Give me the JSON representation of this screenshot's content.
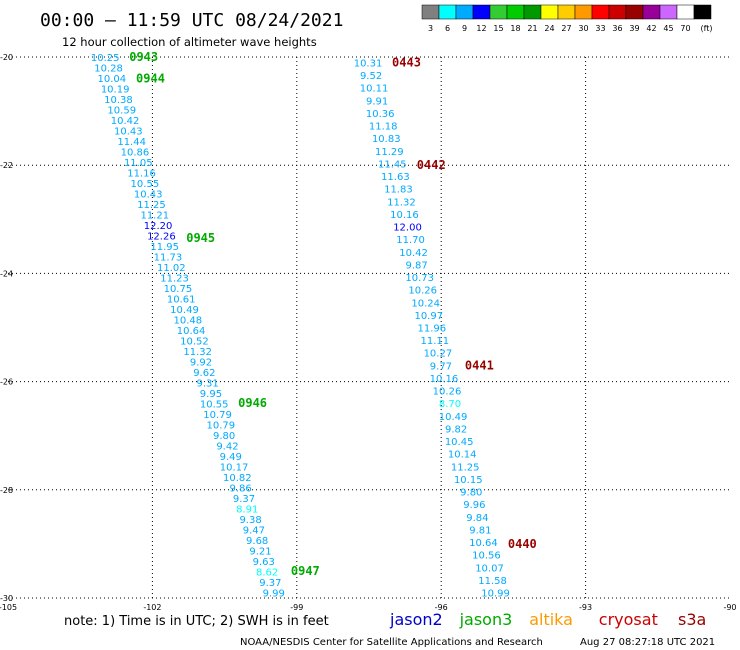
{
  "header": {
    "title": "00:00 — 11:59 UTC 08/24/2021",
    "subtitle": "12 hour collection of altimeter wave heights"
  },
  "colorbar": {
    "colors": [
      "#808080",
      "#00ffff",
      "#00aaff",
      "#0000ff",
      "#33cc33",
      "#00cc00",
      "#009900",
      "#ffff00",
      "#ffcc00",
      "#ff9900",
      "#ff0000",
      "#cc0000",
      "#990000",
      "#990099",
      "#cc66ff",
      "#ffffff",
      "#000000"
    ],
    "labels": [
      "3",
      "6",
      "9",
      "12",
      "15",
      "18",
      "21",
      "24",
      "27",
      "30",
      "33",
      "36",
      "39",
      "42",
      "45",
      "70",
      "(ft)"
    ]
  },
  "footer": {
    "note": "note:  1) Time is in UTC;  2) SWH is in feet",
    "credit": "NOAA/NESDIS Center for Satellite Applications and Research",
    "timestamp": "Aug 27 08:27:18 UTC 2021",
    "legend": [
      {
        "name": "jason2",
        "color": "#0000cc"
      },
      {
        "name": "jason3",
        "color": "#00aa00"
      },
      {
        "name": "altika",
        "color": "#ff9900"
      },
      {
        "name": "cryosat",
        "color": "#cc0000"
      },
      {
        "name": "s3a",
        "color": "#990000"
      }
    ]
  },
  "chart_data": {
    "type": "scatter",
    "xlim": [
      -105,
      -90
    ],
    "ylim": [
      -30,
      -20
    ],
    "xticks": [
      "-105",
      "-102",
      "-99",
      "-96",
      "-93",
      "-90"
    ],
    "yticks": [
      "-20",
      "-22",
      "-24",
      "-26",
      "-28",
      "-30"
    ],
    "xtick_values": [
      -105,
      -102,
      -99,
      -96,
      -93,
      -90
    ],
    "ytick_values": [
      -20,
      -22,
      -24,
      -26,
      -28,
      -30
    ],
    "grid": true,
    "units": "ft",
    "tracks": [
      {
        "satellite": "jason3",
        "color": "#00aa00",
        "lon_start": -102.98,
        "lat_start": -20.0,
        "lon_end": -99.48,
        "lat_end": -29.9,
        "values": [
          "10.25",
          "10.28",
          "10.04",
          "10.19",
          "10.38",
          "10.59",
          "10.42",
          "10.43",
          "11.44",
          "10.86",
          "11.05",
          "11.16",
          "10.55",
          "10.43",
          "11.25",
          "11.21",
          "12.20",
          "12.26",
          "11.95",
          "11.73",
          "11.02",
          "11.23",
          "10.75",
          "10.61",
          "10.49",
          "10.48",
          "10.64",
          "10.52",
          "11.32",
          "9.92",
          "9.62",
          "9.31",
          "9.95",
          "10.55",
          "10.79",
          "10.79",
          "9.80",
          "9.42",
          "9.49",
          "10.17",
          "10.82",
          "9.86",
          "9.37",
          "8.91",
          "9.38",
          "9.47",
          "9.68",
          "9.21",
          "9.63",
          "8.62",
          "9.37",
          "9.99"
        ],
        "times": [
          {
            "label": "0943",
            "lat": -20.0
          },
          {
            "label": "0944",
            "lat": -20.4
          },
          {
            "label": "0945",
            "lat": -23.35
          },
          {
            "label": "0946",
            "lat": -26.4
          },
          {
            "label": "0947",
            "lat": -29.5
          }
        ]
      },
      {
        "satellite": "s3a",
        "color": "#990000",
        "lon_start": -97.52,
        "lat_start": -20.1,
        "lon_end": -94.87,
        "lat_end": -29.9,
        "values": [
          "10.31",
          "9.52",
          "10.11",
          "9.91",
          "10.36",
          "11.18",
          "10.83",
          "11.29",
          "11.45",
          "11.63",
          "11.83",
          "11.32",
          "10.16",
          "12.00",
          "11.70",
          "10.42",
          "9.87",
          "10.73",
          "10.26",
          "10.24",
          "10.97",
          "11.96",
          "11.11",
          "10.27",
          "9.77",
          "10.16",
          "10.26",
          "8.70",
          "10.49",
          "9.82",
          "10.45",
          "10.14",
          "11.25",
          "10.15",
          "9.80",
          "9.96",
          "9.84",
          "9.81",
          "10.64",
          "10.56",
          "10.07",
          "11.58",
          "10.99"
        ],
        "times": [
          {
            "label": "0443",
            "lat": -20.1
          },
          {
            "label": "0442",
            "lat": -22.0
          },
          {
            "label": "0441",
            "lat": -25.7
          },
          {
            "label": "0440",
            "lat": -29.0
          }
        ]
      }
    ]
  }
}
